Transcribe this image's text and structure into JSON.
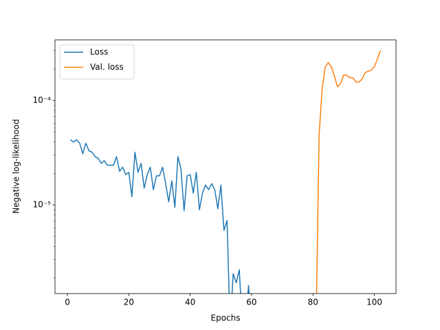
{
  "chart_data": {
    "type": "line",
    "xlabel": "Epochs",
    "ylabel": "Negative log-likelihood",
    "xlim": [
      -4.05,
      107.05
    ],
    "xticks": [
      0,
      20,
      40,
      60,
      80,
      100
    ],
    "ylim": [
      1.42e-06,
      0.00038
    ],
    "yscale": "log",
    "yticks": [
      {
        "value": 1e-05,
        "label": "10⁻⁵"
      },
      {
        "value": 0.0001,
        "label": "10⁻⁴"
      }
    ],
    "yminorticks": [
      2e-06,
      3e-06,
      4e-06,
      5e-06,
      6e-06,
      7e-06,
      8e-06,
      9e-06,
      2e-05,
      3e-05,
      4e-05,
      5e-05,
      6e-05,
      7e-05,
      8e-05,
      9e-05,
      0.0002,
      0.0003
    ],
    "legend": "upper left",
    "series": [
      {
        "name": "Loss",
        "color": "#1f77b4",
        "x": [
          1,
          2,
          3,
          4,
          5,
          6,
          7,
          8,
          9,
          10,
          11,
          12,
          13,
          14,
          15,
          16,
          17,
          18,
          19,
          20,
          21,
          22,
          23,
          24,
          25,
          26,
          27,
          28,
          29,
          30,
          31,
          32,
          33,
          34,
          35,
          36,
          37,
          38,
          39,
          40,
          41,
          42,
          43,
          44,
          45,
          46,
          47,
          48,
          49,
          50,
          51,
          52,
          53,
          54,
          55,
          56,
          57,
          58,
          59,
          60
        ],
        "values": [
          4.2e-05,
          4e-05,
          4.2e-05,
          3.9e-05,
          3.1e-05,
          3.9e-05,
          3.3e-05,
          3.2e-05,
          2.9e-05,
          2.8e-05,
          2.5e-05,
          2.65e-05,
          2.4e-05,
          2.4e-05,
          2.4e-05,
          2.9e-05,
          2.1e-05,
          2.3e-05,
          1.95e-05,
          2.05e-05,
          1.2e-05,
          3.2e-05,
          2.05e-05,
          2.5e-05,
          1.45e-05,
          1.95e-05,
          2.3e-05,
          1.4e-05,
          1.9e-05,
          1.9e-05,
          2.3e-05,
          1.6e-05,
          1.07e-05,
          1.7e-05,
          9.5e-06,
          2.9e-05,
          2.2e-05,
          8.8e-06,
          1.9e-05,
          1.95e-05,
          1.3e-05,
          2.05e-05,
          9e-06,
          1.3e-05,
          1.55e-05,
          1.4e-05,
          1.6e-05,
          1.4e-05,
          9.2e-06,
          1.55e-05,
          5.7e-06,
          7.1e-06,
          0,
          2.2e-06,
          1.8e-06,
          2.4e-06,
          0,
          0,
          1.7e-06,
          0
        ]
      },
      {
        "name": "Val. loss",
        "color": "#ff7f0e",
        "x": [
          81,
          82,
          83,
          84,
          85,
          86,
          87,
          88,
          89,
          90,
          91,
          92,
          93,
          94,
          95,
          96,
          97,
          98,
          99,
          100,
          101,
          102
        ],
        "values": [
          0,
          4.7e-05,
          0.00013,
          0.00021,
          0.00023,
          0.00021,
          0.00017,
          0.000135,
          0.000145,
          0.000175,
          0.000175,
          0.000165,
          0.000165,
          0.00015,
          0.00015,
          0.00016,
          0.000185,
          0.00019,
          0.000195,
          0.00021,
          0.00025,
          0.0003
        ]
      }
    ]
  }
}
